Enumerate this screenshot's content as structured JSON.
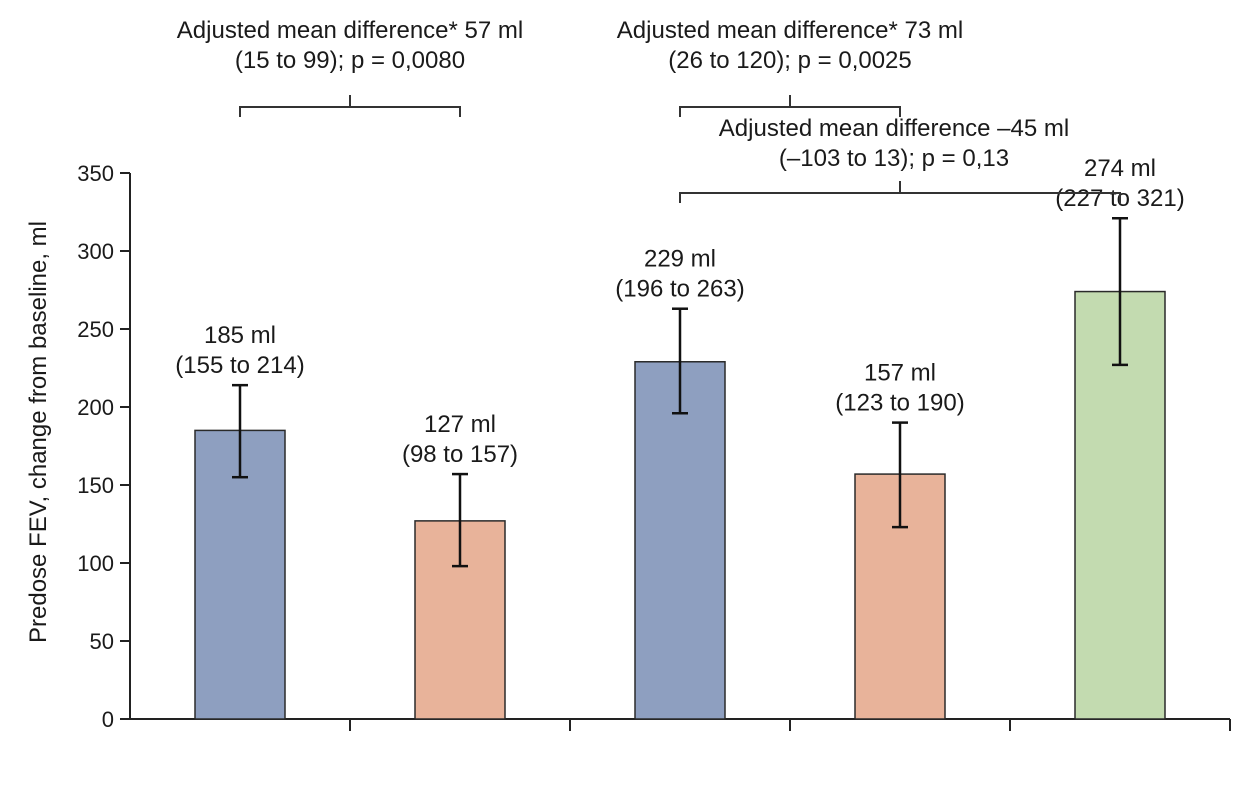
{
  "chart_data": {
    "type": "bar",
    "ylabel": "Predose FEV, change from baseline, ml",
    "ylim": [
      0,
      350
    ],
    "yticks": [
      0,
      50,
      100,
      150,
      200,
      250,
      300,
      350
    ],
    "grid": false,
    "bars": [
      {
        "value": 185,
        "ci": [
          155,
          214
        ],
        "value_label": "185 ml",
        "ci_label": "(155 to 214)",
        "color": "#8E9FC0"
      },
      {
        "value": 127,
        "ci": [
          98,
          157
        ],
        "value_label": "127 ml",
        "ci_label": "(98 to 157)",
        "color": "#E8B39A"
      },
      {
        "value": 229,
        "ci": [
          196,
          263
        ],
        "value_label": "229 ml",
        "ci_label": "(196 to 263)",
        "color": "#8E9FC0"
      },
      {
        "value": 157,
        "ci": [
          123,
          190
        ],
        "value_label": "157 ml",
        "ci_label": "(123 to 190)",
        "color": "#E8B39A"
      },
      {
        "value": 274,
        "ci": [
          227,
          321
        ],
        "value_label": "274 ml",
        "ci_label": "(227 to 321)",
        "color": "#C3DBB0"
      }
    ],
    "comparisons": [
      {
        "from_bar": 0,
        "to_bar": 1,
        "line1": "Adjusted mean difference* 57 ml",
        "line2": "(15 to 99); p = 0,0080"
      },
      {
        "from_bar": 2,
        "to_bar": 3,
        "line1": "Adjusted mean difference* 73 ml",
        "line2": "(26 to 120); p = 0,0025"
      },
      {
        "from_bar": 2,
        "to_bar": 4,
        "line1": "Adjusted mean difference –45 ml",
        "line2": "(–103 to 13); p = 0,13"
      }
    ]
  }
}
